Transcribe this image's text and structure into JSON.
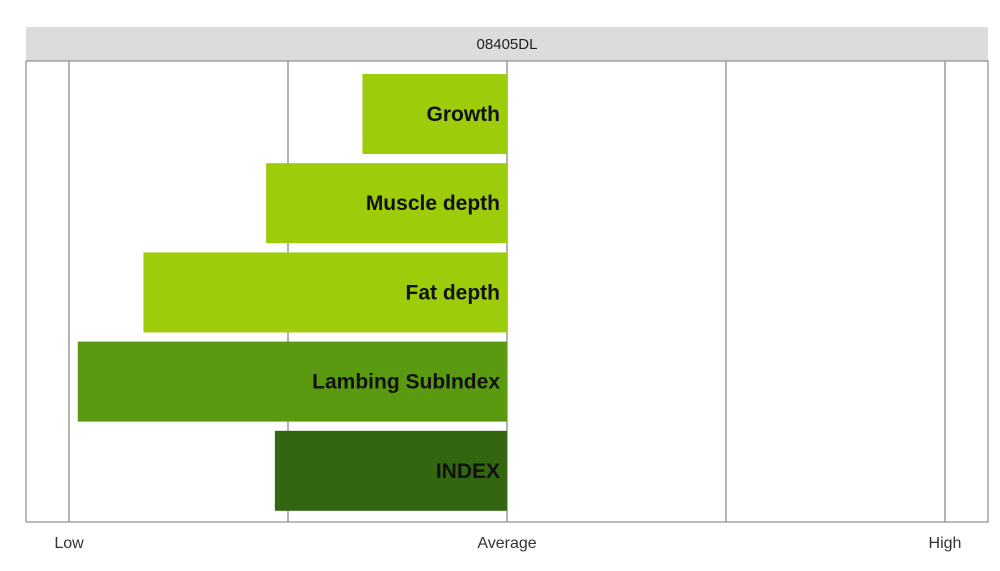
{
  "chart_data": {
    "type": "bar",
    "orientation": "horizontal",
    "title": "08405DL",
    "categories": [
      "Growth",
      "Muscle depth",
      "Fat depth",
      "Lambing SubIndex",
      "INDEX"
    ],
    "values": [
      -0.33,
      -0.55,
      -0.83,
      -0.98,
      -0.53
    ],
    "bar_colors": [
      "#9ccc0a",
      "#9ccc0a",
      "#9ccc0a",
      "#5a9a10",
      "#336610"
    ],
    "xlim": [
      -1,
      1
    ],
    "xticks": [
      {
        "value": -1,
        "label": "Low"
      },
      {
        "value": 0,
        "label": "Average"
      },
      {
        "value": 1,
        "label": "High"
      }
    ],
    "gridlines": [
      -1,
      -0.5,
      0,
      0.5,
      1
    ],
    "xlabel": "",
    "ylabel": "",
    "legend": "none",
    "grid": true
  },
  "colors": {
    "title_strip": "#dcdcdc",
    "light_green": "#9ccc0a",
    "mid_green": "#5a9a10",
    "dark_green": "#336610"
  }
}
